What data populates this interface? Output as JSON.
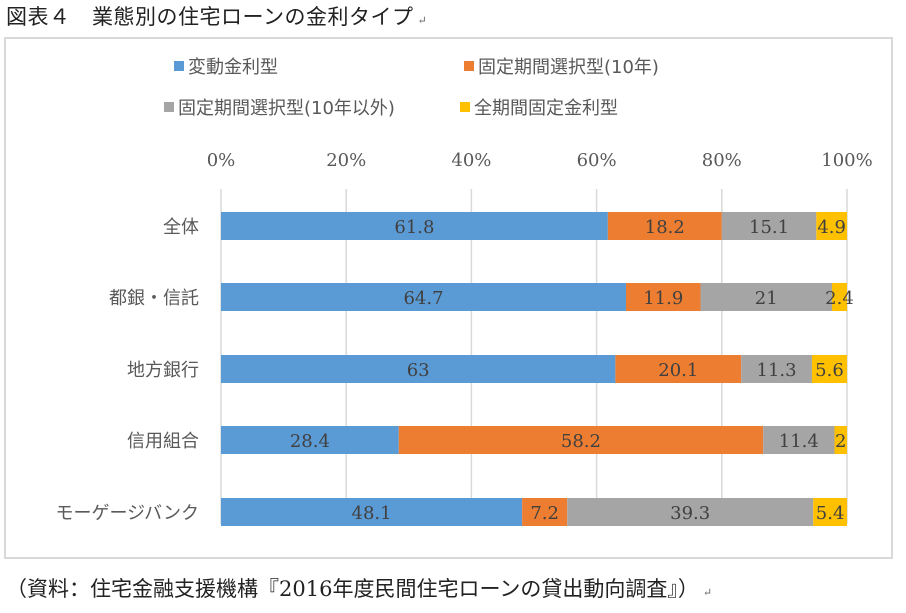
{
  "caption": "図表４　業態別の住宅ローンの金利タイプ",
  "paragraph_mark": "↵",
  "source": "（資料：住宅金融支援機構『2016年度民間住宅ローンの貸出動向調査』）",
  "chart_data": {
    "type": "bar",
    "orientation": "horizontal",
    "stacked": "percent",
    "title": "",
    "xlabel": "",
    "ylabel": "",
    "xlim": [
      0,
      100
    ],
    "x_ticks": [
      "0%",
      "20%",
      "40%",
      "60%",
      "80%",
      "100%"
    ],
    "x_tick_values": [
      0,
      20,
      40,
      60,
      80,
      100
    ],
    "x_axis_position": "top",
    "grid": true,
    "legend_position": "top",
    "categories": [
      "全体",
      "都銀・信託",
      "地方銀行",
      "信用組合",
      "モーゲージバンク"
    ],
    "series": [
      {
        "name": "変動金利型",
        "color": "#5b9bd5",
        "values": [
          61.8,
          64.7,
          63,
          28.4,
          48.1
        ]
      },
      {
        "name": "固定期間選択型(10年)",
        "color": "#ed7d31",
        "values": [
          18.2,
          11.9,
          20.1,
          58.2,
          7.2
        ]
      },
      {
        "name": "固定期間選択型(10年以外)",
        "color": "#a5a5a5",
        "values": [
          15.1,
          21,
          11.3,
          11.4,
          39.3
        ]
      },
      {
        "name": "全期間固定金利型",
        "color": "#ffc000",
        "values": [
          4.9,
          2.4,
          5.6,
          2,
          5.4
        ]
      }
    ],
    "data_labels": [
      [
        "61.8",
        "64.7",
        "63",
        "28.4",
        "48.1"
      ],
      [
        "18.2",
        "11.9",
        "20.1",
        "58.2",
        "7.2"
      ],
      [
        "15.1",
        "21",
        "11.3",
        "11.4",
        "39.3"
      ],
      [
        "4.9",
        "2.4",
        "5.6",
        "2",
        "5.4"
      ]
    ]
  }
}
